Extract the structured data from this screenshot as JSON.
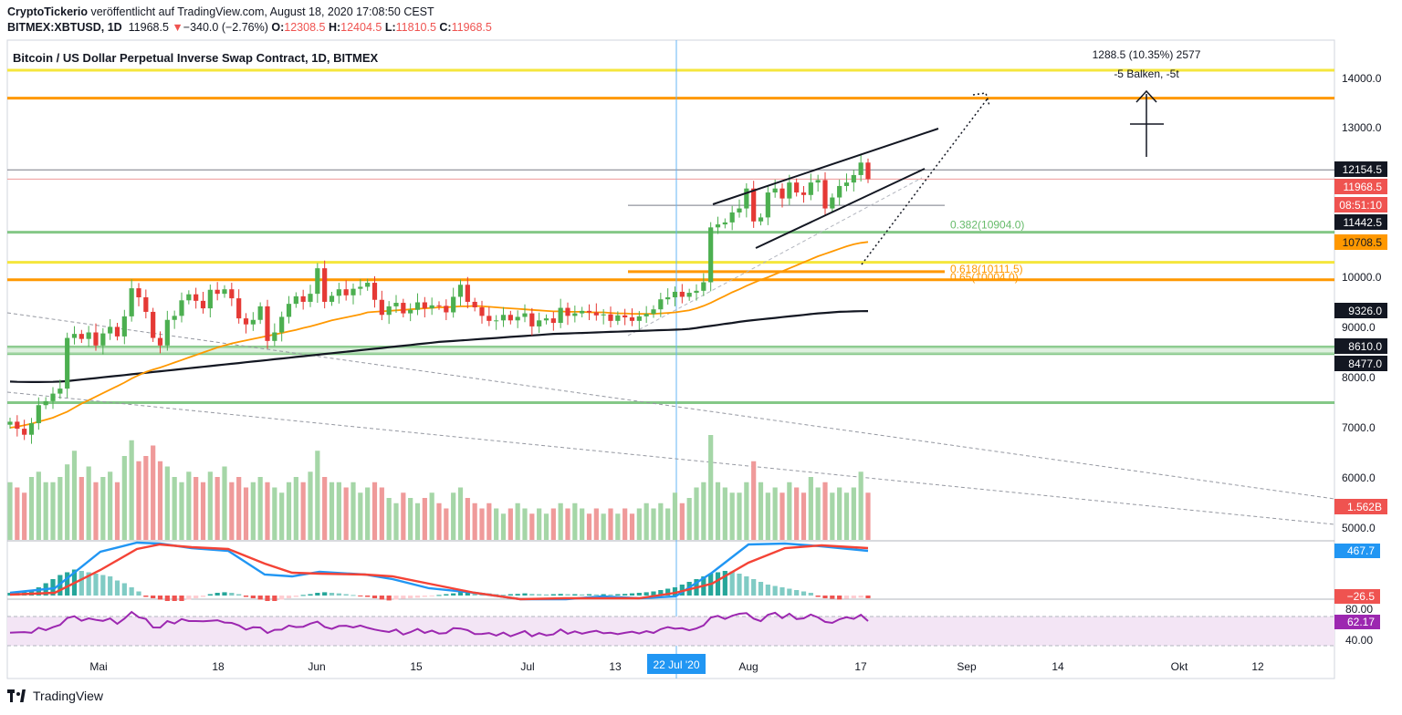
{
  "header": {
    "author": "CryptoTickerio",
    "published_text": "veröffentlicht auf TradingView.com, August 18, 2020 17:08:50 CEST",
    "symbol": "BITMEX:XBTUSD, 1D",
    "last": "11968.5",
    "change_arrow": "▼",
    "change": "−340.0 (−2.76%)",
    "o_label": "O:",
    "o_value": "12308.5",
    "h_label": "H:",
    "h_value": "12404.5",
    "l_label": "L:",
    "l_value": "11810.5",
    "c_label": "C:",
    "c_value": "11968.5"
  },
  "footer": {
    "brand": "TradingView"
  },
  "colors": {
    "up": "#26a69a",
    "down": "#ef5350",
    "upCandle": "#4caf50",
    "downCandle": "#e53935",
    "yellow": "#f5e63c",
    "orange": "#ff9800",
    "green": "#66bb6a",
    "ma50": "#ff9800",
    "ma200": "#131722",
    "macd": "#2196f3",
    "signal": "#f44336",
    "rsi": "#9c27b0"
  },
  "chart_data": {
    "type": "candlestick",
    "title": "Bitcoin / US Dollar Perpetual Inverse Swap Contract, 1D, BITMEX",
    "symbol": "XBTUSD",
    "timeframe": "1D",
    "x_ticks": [
      "Mai",
      "18",
      "Jun",
      "15",
      "Jul",
      "13",
      "Aug",
      "17",
      "Sep",
      "14",
      "Okt",
      "12"
    ],
    "y_ticks": [
      "14000.0",
      "13000.0",
      "10000.0",
      "9000.0",
      "8000.0",
      "7000.0",
      "6000.0",
      "5000.0"
    ],
    "price_labels": [
      {
        "text": "12154.5",
        "style": "black"
      },
      {
        "text": "11968.5",
        "style": "red"
      },
      {
        "text": "08:51:10",
        "style": "red"
      },
      {
        "text": "11442.5",
        "style": "black"
      },
      {
        "text": "10708.5",
        "style": "orange"
      },
      {
        "text": "9326.0",
        "style": "black"
      },
      {
        "text": "8610.0",
        "style": "black"
      },
      {
        "text": "8477.0",
        "style": "black"
      },
      {
        "text": "1.562B",
        "style": "red"
      }
    ],
    "horizontal_levels": [
      {
        "value": 14150,
        "color": "yellow"
      },
      {
        "value": 13600,
        "color": "orange"
      },
      {
        "value": 12154.5,
        "color": "gray"
      },
      {
        "value": 11442.5,
        "color": "gray"
      },
      {
        "value": 10904,
        "color": "green"
      },
      {
        "value": 10300,
        "color": "yellow"
      },
      {
        "value": 10111.5,
        "color": "orange"
      },
      {
        "value": 9950,
        "color": "orange"
      },
      {
        "value": 8610,
        "color": "green"
      },
      {
        "value": 8477,
        "color": "green"
      },
      {
        "value": 7500,
        "color": "green"
      }
    ],
    "fib_labels": [
      "0.382(10904.0)",
      "0.618(10111.5)",
      "0.65(10004.0)"
    ],
    "measure_text_1": "1288.5 (10.35%) 2577",
    "measure_text_2": "-5 Balken, -5t",
    "date_badge": "22 Jul '20",
    "macd_labels": [
      "467.7",
      "−26.5"
    ],
    "rsi_labels": [
      "80.00",
      "62.17",
      "40.00"
    ],
    "closes": [
      7120,
      6980,
      6860,
      7090,
      7450,
      7530,
      7680,
      7780,
      8790,
      8870,
      8770,
      8900,
      8640,
      8880,
      9010,
      8820,
      9220,
      9780,
      9600,
      9310,
      8790,
      8640,
      9150,
      9230,
      9540,
      9660,
      9530,
      9380,
      9750,
      9670,
      9760,
      9580,
      9180,
      9060,
      9150,
      9420,
      8730,
      8900,
      9210,
      9470,
      9620,
      9510,
      9670,
      10180,
      9510,
      9630,
      9760,
      9640,
      9770,
      9810,
      9890,
      9550,
      9250,
      9420,
      9490,
      9280,
      9350,
      9500,
      9380,
      9440,
      9430,
      9300,
      9610,
      9850,
      9510,
      9400,
      9230,
      9130,
      9140,
      9250,
      9140,
      9210,
      9280,
      9020,
      9140,
      9180,
      9090,
      9390,
      9230,
      9280,
      9330,
      9300,
      9240,
      9260,
      9130,
      9240,
      9200,
      9130,
      9220,
      9270,
      9360,
      9560,
      9600,
      9710,
      9610,
      9690,
      9730,
      9900,
      11000,
      11060,
      11100,
      11300,
      11380,
      11780,
      11120,
      11200,
      11700,
      11780,
      11580,
      11900,
      11700,
      11650,
      11900,
      11950,
      11380,
      11600,
      11830,
      11900,
      12050,
      12300,
      11968.5
    ],
    "ma50": [
      7000,
      7020,
      7050,
      7080,
      7120,
      7160,
      7200,
      7260,
      7320,
      7400,
      7480,
      7550,
      7620,
      7690,
      7760,
      7830,
      7900,
      7980,
      8050,
      8110,
      8160,
      8200,
      8250,
      8300,
      8350,
      8400,
      8450,
      8500,
      8550,
      8600,
      8640,
      8680,
      8710,
      8740,
      8770,
      8800,
      8830,
      8860,
      8890,
      8920,
      8950,
      8990,
      9020,
      9060,
      9100,
      9140,
      9170,
      9200,
      9230,
      9260,
      9300,
      9310,
      9320,
      9330,
      9340,
      9350,
      9360,
      9370,
      9380,
      9390,
      9400,
      9400,
      9410,
      9420,
      9420,
      9430,
      9420,
      9410,
      9400,
      9390,
      9380,
      9370,
      9360,
      9350,
      9340,
      9330,
      9320,
      9320,
      9310,
      9310,
      9310,
      9300,
      9300,
      9300,
      9290,
      9280,
      9280,
      9270,
      9270,
      9270,
      9270,
      9280,
      9290,
      9300,
      9320,
      9340,
      9380,
      9430,
      9490,
      9560,
      9630,
      9700,
      9760,
      9830,
      9890,
      9950,
      10000,
      10060,
      10120,
      10180,
      10240,
      10300,
      10360,
      10420,
      10470,
      10520,
      10570,
      10620,
      10660,
      10690,
      10708.5
    ],
    "ma200": [
      7920,
      7915,
      7912,
      7910,
      7910,
      7912,
      7915,
      7920,
      7930,
      7945,
      7960,
      7975,
      7990,
      8005,
      8020,
      8035,
      8050,
      8065,
      8080,
      8095,
      8110,
      8125,
      8140,
      8155,
      8170,
      8185,
      8200,
      8215,
      8230,
      8245,
      8260,
      8275,
      8290,
      8305,
      8320,
      8335,
      8350,
      8365,
      8380,
      8395,
      8410,
      8425,
      8440,
      8455,
      8470,
      8485,
      8500,
      8515,
      8530,
      8545,
      8560,
      8575,
      8590,
      8605,
      8620,
      8635,
      8650,
      8665,
      8680,
      8695,
      8710,
      8720,
      8730,
      8740,
      8750,
      8760,
      8770,
      8780,
      8790,
      8800,
      8810,
      8820,
      8830,
      8840,
      8850,
      8860,
      8870,
      8875,
      8880,
      8885,
      8890,
      8895,
      8900,
      8905,
      8910,
      8915,
      8920,
      8925,
      8930,
      8935,
      8940,
      8945,
      8950,
      8955,
      8960,
      8970,
      8990,
      9010,
      9030,
      9050,
      9070,
      9090,
      9110,
      9130,
      9145,
      9160,
      9175,
      9190,
      9205,
      9220,
      9235,
      9250,
      9265,
      9280,
      9290,
      9300,
      9310,
      9315,
      9320,
      9323,
      9326
    ],
    "volume": [
      0.55,
      0.5,
      0.45,
      0.6,
      0.65,
      0.55,
      0.55,
      0.6,
      0.72,
      0.85,
      0.6,
      0.7,
      0.55,
      0.6,
      0.65,
      0.55,
      0.8,
      0.95,
      0.75,
      0.8,
      0.9,
      0.75,
      0.7,
      0.6,
      0.55,
      0.65,
      0.6,
      0.55,
      0.65,
      0.6,
      0.7,
      0.55,
      0.6,
      0.5,
      0.55,
      0.6,
      0.55,
      0.5,
      0.45,
      0.55,
      0.6,
      0.55,
      0.65,
      0.85,
      0.6,
      0.55,
      0.55,
      0.5,
      0.55,
      0.45,
      0.5,
      0.55,
      0.5,
      0.4,
      0.35,
      0.45,
      0.4,
      0.35,
      0.4,
      0.45,
      0.35,
      0.3,
      0.45,
      0.5,
      0.4,
      0.35,
      0.3,
      0.35,
      0.3,
      0.25,
      0.3,
      0.35,
      0.3,
      0.25,
      0.3,
      0.25,
      0.3,
      0.35,
      0.3,
      0.35,
      0.3,
      0.25,
      0.3,
      0.25,
      0.3,
      0.25,
      0.3,
      0.25,
      0.3,
      0.35,
      0.3,
      0.35,
      0.3,
      0.45,
      0.35,
      0.4,
      0.5,
      0.55,
      1.0,
      0.55,
      0.5,
      0.45,
      0.45,
      0.55,
      0.75,
      0.55,
      0.45,
      0.5,
      0.45,
      0.55,
      0.5,
      0.45,
      0.6,
      0.5,
      0.55,
      0.45,
      0.5,
      0.45,
      0.5,
      0.65,
      0.45
    ],
    "x_range": [
      0,
      1450
    ],
    "price_range": [
      4800,
      14600
    ],
    "y_axis_side": "right"
  }
}
